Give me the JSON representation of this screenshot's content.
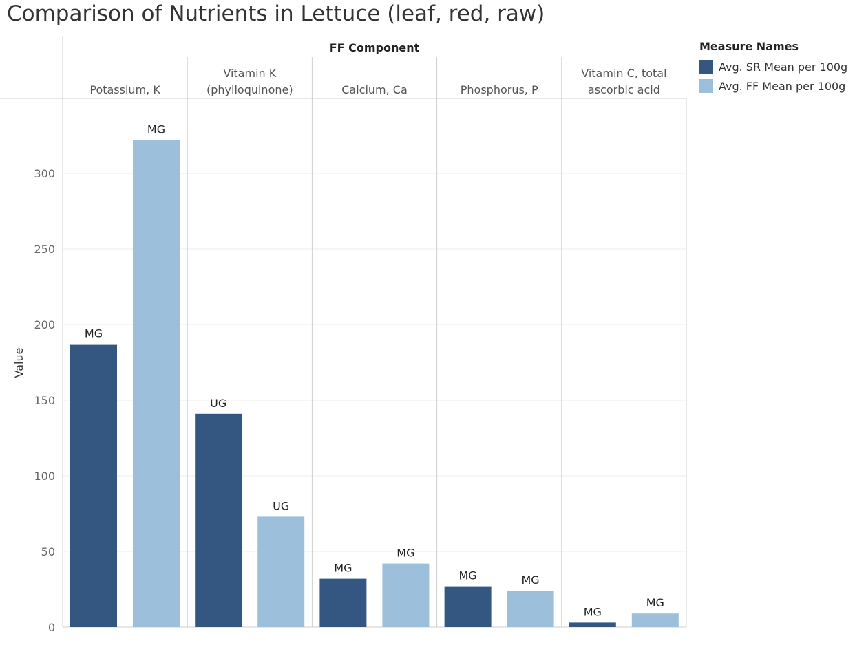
{
  "chart_data": {
    "type": "bar",
    "title": "Comparison of Nutrients in Lettuce (leaf, red, raw)",
    "column_header": "FF Component",
    "ylabel": "Value",
    "ylim": [
      0,
      350
    ],
    "yticks": [
      0,
      50,
      100,
      150,
      200,
      250,
      300
    ],
    "grid": true,
    "categories": [
      [
        "Potassium, K"
      ],
      [
        "Vitamin K",
        "(phylloquinone)"
      ],
      [
        "Calcium, Ca"
      ],
      [
        "Phosphorus, P"
      ],
      [
        "Vitamin C, total",
        "ascorbic acid"
      ]
    ],
    "series": [
      {
        "name": "Avg. SR Mean per 100g",
        "color": "#335780",
        "values": [
          187,
          141,
          32,
          27,
          3
        ],
        "labels": [
          "MG",
          "UG",
          "MG",
          "MG",
          "MG"
        ]
      },
      {
        "name": "Avg. FF Mean per 100g",
        "color": "#9cbfdc",
        "values": [
          322,
          73,
          42,
          24,
          9
        ],
        "labels": [
          "MG",
          "UG",
          "MG",
          "MG",
          "MG"
        ]
      }
    ],
    "legend": {
      "title": "Measure Names",
      "position": "right"
    }
  }
}
